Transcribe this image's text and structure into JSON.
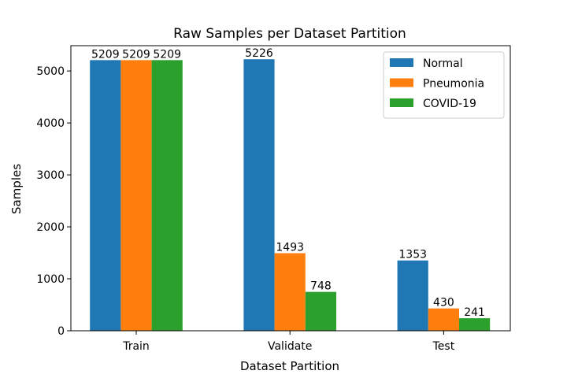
{
  "chart_data": {
    "type": "bar",
    "title": "Raw Samples per Dataset Partition",
    "xlabel": "Dataset Partition",
    "ylabel": "Samples",
    "categories": [
      "Train",
      "Validate",
      "Test"
    ],
    "series": [
      {
        "name": "Normal",
        "color": "#1f77b4",
        "values": [
          5209,
          5226,
          1353
        ]
      },
      {
        "name": "Pneumonia",
        "color": "#ff7f0e",
        "values": [
          5209,
          1493,
          430
        ]
      },
      {
        "name": "COVID-19",
        "color": "#2ca02c",
        "values": [
          5209,
          748,
          241
        ]
      }
    ],
    "ylim": [
      0,
      5487
    ],
    "yticks": [
      0,
      1000,
      2000,
      3000,
      4000,
      5000
    ],
    "legend_position": "top-right",
    "grid": false
  }
}
